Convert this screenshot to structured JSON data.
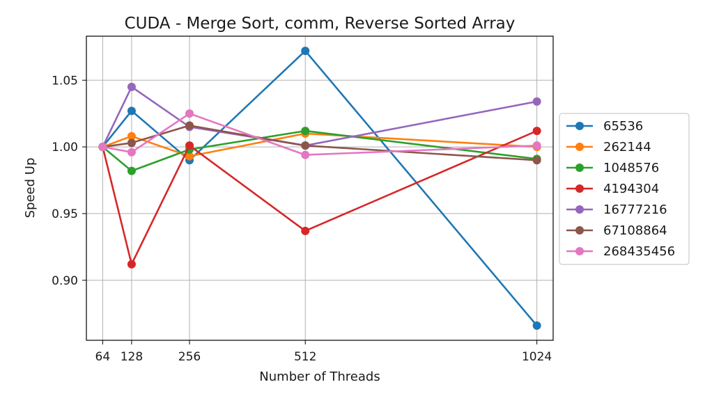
{
  "chart_data": {
    "type": "line",
    "title": "CUDA - Merge Sort, comm, Reverse Sorted Array",
    "xlabel": "Number of Threads",
    "ylabel": "Speed Up",
    "x": [
      64,
      128,
      256,
      512,
      1024
    ],
    "x_ticks": [
      "64",
      "128",
      "256",
      "512",
      "1024"
    ],
    "y_ticks": [
      "0.90",
      "0.95",
      "1.00",
      "1.05"
    ],
    "xlim": [
      28,
      1060
    ],
    "ylim": [
      0.855,
      1.083
    ],
    "grid": true,
    "legend_placement": "center-right-outside",
    "series": [
      {
        "name": "65536",
        "color": "#1f77b4",
        "values": [
          1.0,
          1.027,
          0.99,
          1.072,
          0.866
        ]
      },
      {
        "name": "262144",
        "color": "#ff7f0e",
        "values": [
          1.0,
          1.008,
          0.993,
          1.01,
          1.0
        ]
      },
      {
        "name": "1048576",
        "color": "#2ca02c",
        "values": [
          1.0,
          0.982,
          0.998,
          1.012,
          0.991
        ]
      },
      {
        "name": "4194304",
        "color": "#d62728",
        "values": [
          1.0,
          0.912,
          1.001,
          0.937,
          1.012
        ]
      },
      {
        "name": "16777216",
        "color": "#9467bd",
        "values": [
          1.0,
          1.045,
          1.015,
          1.001,
          1.034
        ]
      },
      {
        "name": "67108864",
        "color": "#8c564b",
        "values": [
          1.0,
          1.003,
          1.016,
          1.001,
          0.99
        ]
      },
      {
        "name": "268435456",
        "color": "#e377c2",
        "values": [
          1.0,
          0.996,
          1.025,
          0.994,
          1.001
        ]
      }
    ]
  }
}
